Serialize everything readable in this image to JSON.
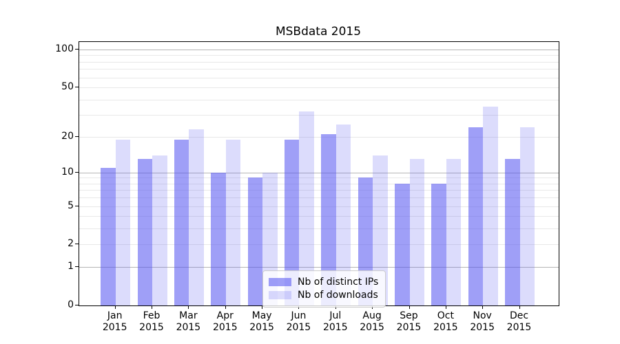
{
  "chart_data": {
    "type": "bar",
    "title": "MSBdata 2015",
    "categories": [
      "Jan",
      "Feb",
      "Mar",
      "Apr",
      "May",
      "Jun",
      "Jul",
      "Aug",
      "Sep",
      "Oct",
      "Nov",
      "Dec"
    ],
    "year": "2015",
    "series": [
      {
        "name": "Nb of distinct IPs",
        "color": "rgba(80,80,240,0.55)",
        "values": [
          11,
          13,
          19,
          10,
          9,
          19,
          21,
          9,
          8,
          8,
          24,
          13
        ]
      },
      {
        "name": "Nb of downloads",
        "color": "rgba(80,80,240,0.20)",
        "values": [
          19,
          14,
          23,
          19,
          10,
          32,
          25,
          14,
          13,
          13,
          35,
          24
        ]
      }
    ],
    "yscale": "log1p",
    "yticks": [
      0,
      1,
      2,
      5,
      10,
      20,
      50,
      100
    ],
    "ylim": [
      0,
      115
    ],
    "grid_major": [
      1,
      10,
      100
    ],
    "grid_minor": [
      2,
      3,
      4,
      5,
      6,
      7,
      8,
      9,
      20,
      30,
      40,
      50,
      60,
      70,
      80,
      90
    ],
    "legend_position": "lower center",
    "grid": "on"
  }
}
